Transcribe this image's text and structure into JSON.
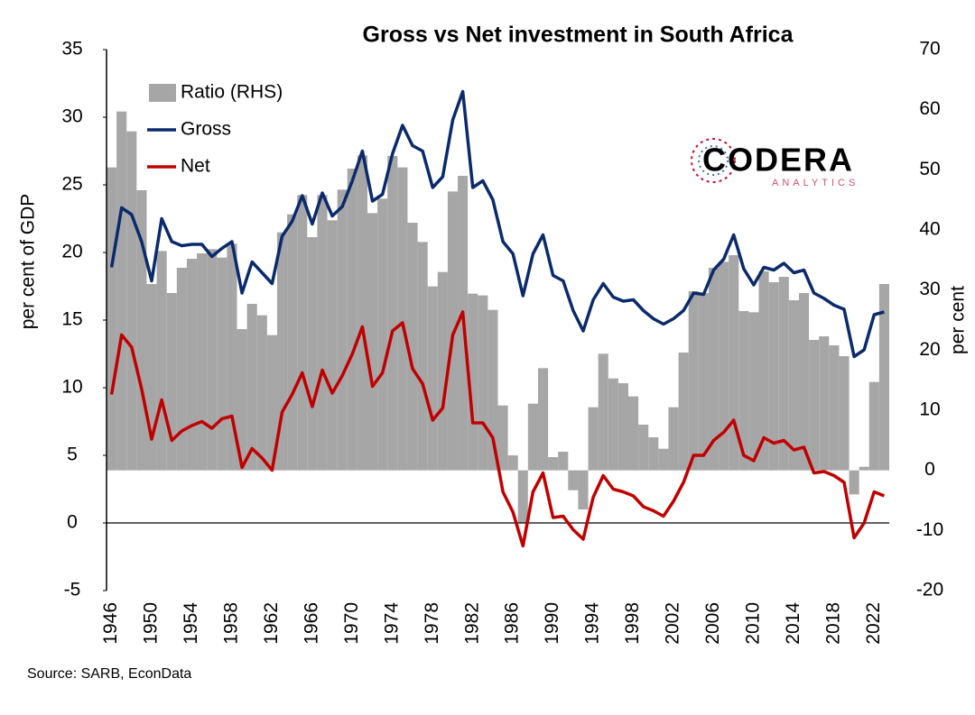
{
  "chart_data": {
    "type": "bar-line",
    "title": "Gross vs Net investment in South Africa",
    "ylabel": "per cent of GDP",
    "y2label": "per cent",
    "source": "Source: SARB, EconData",
    "x": [
      1946,
      1947,
      1948,
      1949,
      1950,
      1951,
      1952,
      1953,
      1954,
      1955,
      1956,
      1957,
      1958,
      1959,
      1960,
      1961,
      1962,
      1963,
      1964,
      1965,
      1966,
      1967,
      1968,
      1969,
      1970,
      1971,
      1972,
      1973,
      1974,
      1975,
      1976,
      1977,
      1978,
      1979,
      1980,
      1981,
      1982,
      1983,
      1984,
      1985,
      1986,
      1987,
      1988,
      1989,
      1990,
      1991,
      1992,
      1993,
      1994,
      1995,
      1996,
      1997,
      1998,
      1999,
      2000,
      2001,
      2002,
      2003,
      2004,
      2005,
      2006,
      2007,
      2008,
      2009,
      2010,
      2011,
      2012,
      2013,
      2014,
      2015,
      2016,
      2017,
      2018,
      2019,
      2020,
      2021,
      2022,
      2023
    ],
    "xlim": [
      1945.5,
      2023.5
    ],
    "xticks": [
      1946,
      1950,
      1954,
      1958,
      1962,
      1966,
      1970,
      1974,
      1978,
      1982,
      1986,
      1990,
      1994,
      1998,
      2002,
      2006,
      2010,
      2014,
      2018,
      2022
    ],
    "ylim": [
      -5,
      35
    ],
    "yticks": [
      -5,
      0,
      5,
      10,
      15,
      20,
      25,
      30,
      35
    ],
    "y2lim": [
      -20,
      70
    ],
    "y2ticks": [
      -20,
      -10,
      0,
      10,
      20,
      30,
      40,
      50,
      60,
      70
    ],
    "series": [
      {
        "name": "Ratio (RHS)",
        "type": "bar",
        "axis": "y2",
        "color": "#a6a6a6",
        "values": [
          50.4,
          59.7,
          56.4,
          46.6,
          31.0,
          36.5,
          29.5,
          33.7,
          35.2,
          36.1,
          36.8,
          35.4,
          37.7,
          23.5,
          27.7,
          25.8,
          22.5,
          39.6,
          42.6,
          45.8,
          38.8,
          45.8,
          41.6,
          46.7,
          50.2,
          52.4,
          42.8,
          45.2,
          52.3,
          50.4,
          41.2,
          38.0,
          30.6,
          33.0,
          46.4,
          49.0,
          29.4,
          29.1,
          26.7,
          10.8,
          2.5,
          -8.8,
          11.1,
          17.0,
          2.2,
          3.1,
          -3.3,
          -6.5,
          10.5,
          19.4,
          15.3,
          14.5,
          12.3,
          7.6,
          5.5,
          3.6,
          10.5,
          19.6,
          29.8,
          29.5,
          33.7,
          34.7,
          35.8,
          26.5,
          26.3,
          33.1,
          31.3,
          32.2,
          28.3,
          29.5,
          21.7,
          22.3,
          20.8,
          19.0,
          -4.0,
          0.6,
          14.7,
          31.0
        ]
      },
      {
        "name": "Gross",
        "type": "line",
        "color": "#0b2a6b",
        "values": [
          18.9,
          23.3,
          22.8,
          20.8,
          17.9,
          22.5,
          20.8,
          20.5,
          20.6,
          20.6,
          19.7,
          20.3,
          20.8,
          17.0,
          19.3,
          18.5,
          17.7,
          21.2,
          22.3,
          24.2,
          22.1,
          24.4,
          22.7,
          23.4,
          25.3,
          27.5,
          23.8,
          24.3,
          27.3,
          29.4,
          27.9,
          27.5,
          24.8,
          25.6,
          29.8,
          31.9,
          24.8,
          25.3,
          23.9,
          20.8,
          19.9,
          16.8,
          19.9,
          21.3,
          18.3,
          17.9,
          15.7,
          14.2,
          16.5,
          17.7,
          16.7,
          16.4,
          16.5,
          15.7,
          15.1,
          14.7,
          15.1,
          15.7,
          17.0,
          16.9,
          18.7,
          19.5,
          21.3,
          18.8,
          17.6,
          18.9,
          18.7,
          19.2,
          18.5,
          18.7,
          17.0,
          16.6,
          16.1,
          15.8,
          12.3,
          12.8,
          15.4,
          15.6
        ]
      },
      {
        "name": "Net",
        "type": "line",
        "color": "#c00000",
        "values": [
          9.5,
          13.9,
          13.0,
          9.9,
          6.2,
          9.1,
          6.1,
          6.8,
          7.2,
          7.5,
          7.0,
          7.7,
          7.9,
          4.1,
          5.5,
          4.8,
          3.9,
          8.2,
          9.5,
          11.1,
          8.6,
          11.3,
          9.6,
          10.9,
          12.5,
          14.5,
          10.1,
          11.1,
          14.2,
          14.8,
          11.4,
          10.3,
          7.6,
          8.5,
          13.9,
          15.6,
          7.4,
          7.4,
          6.3,
          2.3,
          0.8,
          -1.7,
          2.3,
          3.7,
          0.4,
          0.5,
          -0.5,
          -1.2,
          1.9,
          3.5,
          2.5,
          2.3,
          2.0,
          1.2,
          0.9,
          0.5,
          1.6,
          3.0,
          5.0,
          5.0,
          6.1,
          6.7,
          7.6,
          5.0,
          4.6,
          6.3,
          5.9,
          6.1,
          5.4,
          5.6,
          3.7,
          3.8,
          3.5,
          3.0,
          -1.1,
          0.0,
          2.3,
          2.0
        ]
      }
    ],
    "zero_line": true
  },
  "logo": {
    "name": "CODERA",
    "tagline": "ANALYTICS"
  }
}
